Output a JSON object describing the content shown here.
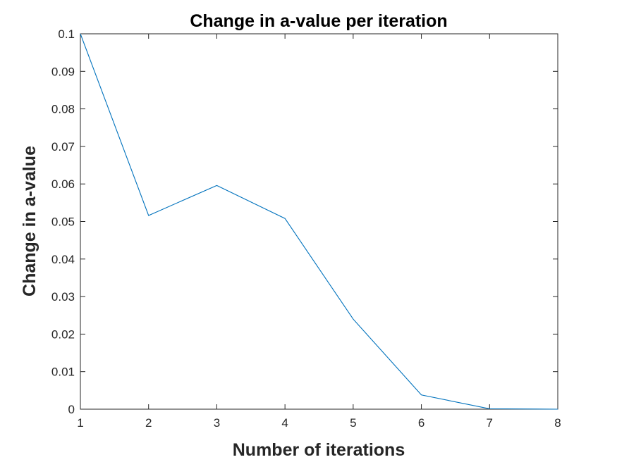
{
  "chart_data": {
    "type": "line",
    "title": "Change in a-value per iteration",
    "xlabel": "Number of iterations",
    "ylabel": "Change in a-value",
    "xlim": [
      1,
      8
    ],
    "ylim": [
      0,
      0.1
    ],
    "x_ticks": [
      "1",
      "2",
      "3",
      "4",
      "5",
      "6",
      "7",
      "8"
    ],
    "y_ticks": [
      "0",
      "0.01",
      "0.02",
      "0.03",
      "0.04",
      "0.05",
      "0.06",
      "0.07",
      "0.08",
      "0.09",
      "0.1"
    ],
    "grid": false,
    "line_color": "#0072BD",
    "axis_color": "#262626",
    "series": [
      {
        "x": [
          1,
          2,
          3,
          4,
          5,
          6,
          7,
          8
        ],
        "values": [
          0.1,
          0.0516,
          0.0596,
          0.0508,
          0.024,
          0.0038,
          0.0001,
          0.0
        ]
      }
    ]
  }
}
